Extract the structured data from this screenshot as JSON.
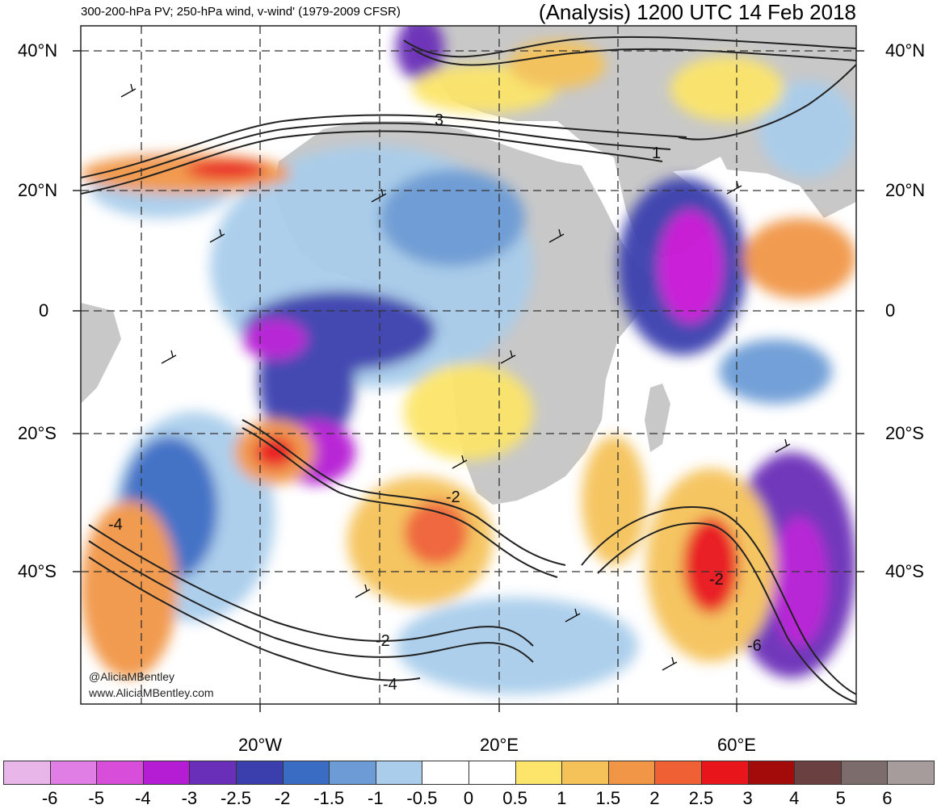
{
  "header": {
    "subtitle": "300-200-hPa PV; 250-hPa wind, v-wind' (1979-2009 CFSR)",
    "title": "(Analysis) 1200 UTC 14 Feb 2018"
  },
  "map": {
    "lat_labels": [
      "40°N",
      "20°N",
      "0",
      "20°S",
      "40°S"
    ],
    "lon_labels": [
      "20°W",
      "20°E",
      "60°E"
    ],
    "contour_labels": [
      "3",
      "1",
      "-2",
      "-4",
      "-2",
      "-4",
      "-2",
      "-6"
    ],
    "credit_handle": "@AliciaMBentley",
    "credit_url": "www.AliciaMBentley.com",
    "colors": {
      "land": "#c8c8c8",
      "ocean": "#ffffff"
    }
  },
  "colorbar": {
    "labels": [
      "-6",
      "-5",
      "-4",
      "-3",
      "-2.5",
      "-2",
      "-1.5",
      "-1",
      "-0.5",
      "0",
      "0.5",
      "1",
      "1.5",
      "2",
      "2.5",
      "3",
      "4",
      "5",
      "6"
    ],
    "colors": [
      "#e8b6e8",
      "#e07ee6",
      "#d94ddb",
      "#b51dd4",
      "#6a2fb8",
      "#3b3fae",
      "#3a6cc4",
      "#6c9bd6",
      "#a9cdeb",
      "#ffffff",
      "#ffffff",
      "#fce56a",
      "#f5c25a",
      "#f19646",
      "#ef6134",
      "#e8151b",
      "#a30a0a",
      "#6b4040",
      "#7c6c6c",
      "#a79c9c"
    ]
  }
}
